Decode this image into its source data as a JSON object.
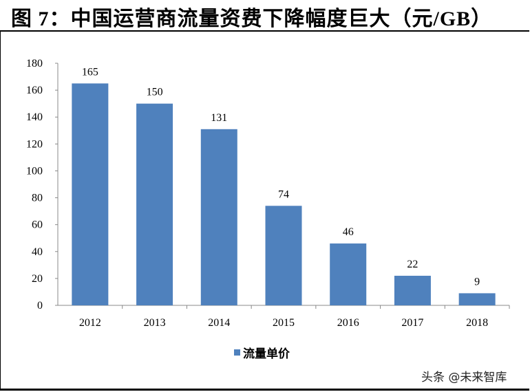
{
  "title": "图 7：中国运营商流量资费下降幅度巨大（元/GB）",
  "watermark": "头条 @未来智库",
  "chart_data": {
    "type": "bar",
    "categories": [
      "2012",
      "2013",
      "2014",
      "2015",
      "2016",
      "2017",
      "2018"
    ],
    "series": [
      {
        "name": "流量单价",
        "values": [
          165,
          150,
          131,
          74,
          46,
          22,
          9
        ],
        "color": "#4F81BD"
      }
    ],
    "ylim": [
      0,
      180
    ],
    "yticks": [
      0,
      20,
      40,
      60,
      80,
      100,
      120,
      140,
      160,
      180
    ],
    "data_labels": true,
    "grid": false,
    "legend": "bottom"
  }
}
